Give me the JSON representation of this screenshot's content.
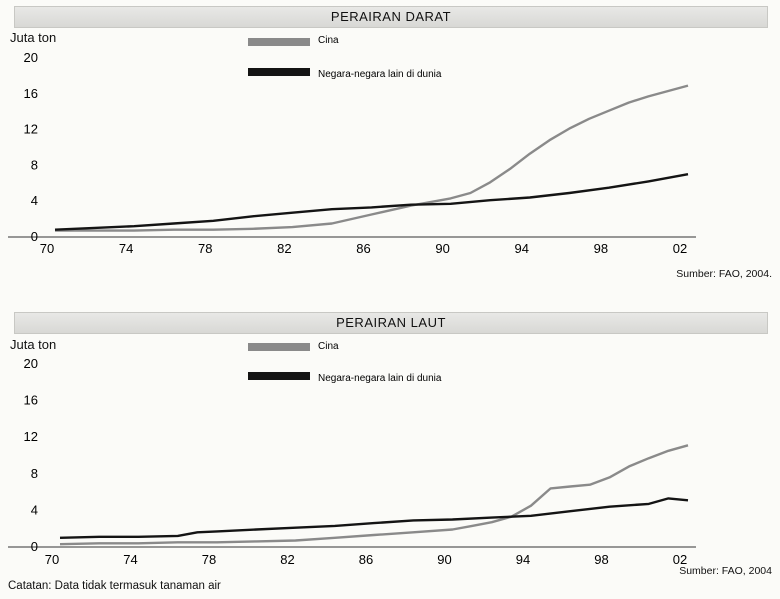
{
  "charts": [
    {
      "id": "darat",
      "title": "PERAIRAN DARAT",
      "unit": "Juta ton",
      "source": "Sumber: FAO, 2004.",
      "legend": [
        "Cina",
        "Negara-negara lain di dunia"
      ]
    },
    {
      "id": "laut",
      "title": "PERAIRAN LAUT",
      "unit": "Juta ton",
      "source": "Sumber: FAO, 2004",
      "legend": [
        "Cina",
        "Negara-negara lain di dunia"
      ]
    }
  ],
  "note": "Catatan: Data tidak termasuk tanaman air",
  "colors": {
    "cina": "#8a8a8a",
    "others": "#141414"
  },
  "chart_data": [
    {
      "type": "line",
      "title": "PERAIRAN DARAT",
      "ylabel": "Juta ton",
      "ylim": [
        0,
        20
      ],
      "yticks": [
        0,
        4,
        8,
        12,
        16,
        20
      ],
      "xticks": [
        "70",
        "74",
        "78",
        "82",
        "86",
        "90",
        "94",
        "98",
        "02"
      ],
      "xlim": [
        1970,
        2002
      ],
      "series": [
        {
          "name": "Cina",
          "x": [
            1970,
            1972,
            1974,
            1976,
            1978,
            1980,
            1982,
            1984,
            1986,
            1988,
            1990,
            1991,
            1992,
            1993,
            1994,
            1995,
            1996,
            1997,
            1998,
            1999,
            2000,
            2001,
            2002
          ],
          "y": [
            0.6,
            0.6,
            0.6,
            0.7,
            0.7,
            0.8,
            1.0,
            1.4,
            2.4,
            3.4,
            4.2,
            4.8,
            6.0,
            7.5,
            9.2,
            10.7,
            12.0,
            13.1,
            14.0,
            14.9,
            15.6,
            16.2,
            16.8
          ]
        },
        {
          "name": "Negara-negara lain di dunia",
          "x": [
            1970,
            1972,
            1974,
            1976,
            1978,
            1980,
            1982,
            1984,
            1986,
            1988,
            1990,
            1992,
            1994,
            1996,
            1998,
            2000,
            2002
          ],
          "y": [
            0.7,
            0.9,
            1.1,
            1.4,
            1.7,
            2.2,
            2.6,
            3.0,
            3.2,
            3.5,
            3.6,
            4.0,
            4.3,
            4.8,
            5.4,
            6.1,
            6.9
          ]
        }
      ]
    },
    {
      "type": "line",
      "title": "PERAIRAN LAUT",
      "ylabel": "Juta ton",
      "ylim": [
        0,
        20
      ],
      "yticks": [
        0,
        4,
        8,
        12,
        16,
        20
      ],
      "xticks": [
        "70",
        "74",
        "78",
        "82",
        "86",
        "90",
        "94",
        "98",
        "02"
      ],
      "xlim": [
        1970,
        2002
      ],
      "series": [
        {
          "name": "Cina",
          "x": [
            1970,
            1972,
            1974,
            1976,
            1978,
            1980,
            1982,
            1984,
            1986,
            1988,
            1990,
            1991,
            1992,
            1993,
            1994,
            1995,
            1996,
            1997,
            1998,
            1999,
            2000,
            2001,
            2002
          ],
          "y": [
            0.2,
            0.3,
            0.3,
            0.4,
            0.4,
            0.5,
            0.6,
            0.9,
            1.2,
            1.5,
            1.8,
            2.2,
            2.6,
            3.2,
            4.4,
            6.3,
            6.5,
            6.7,
            7.5,
            8.7,
            9.6,
            10.4,
            11.0
          ]
        },
        {
          "name": "Negara-negara lain di dunia",
          "x": [
            1970,
            1972,
            1974,
            1976,
            1977,
            1978,
            1980,
            1982,
            1984,
            1986,
            1988,
            1990,
            1992,
            1994,
            1996,
            1998,
            2000,
            2001,
            2002
          ],
          "y": [
            0.9,
            1.0,
            1.0,
            1.1,
            1.5,
            1.6,
            1.8,
            2.0,
            2.2,
            2.5,
            2.8,
            2.9,
            3.1,
            3.3,
            3.8,
            4.3,
            4.6,
            5.2,
            5.0
          ]
        }
      ]
    }
  ]
}
